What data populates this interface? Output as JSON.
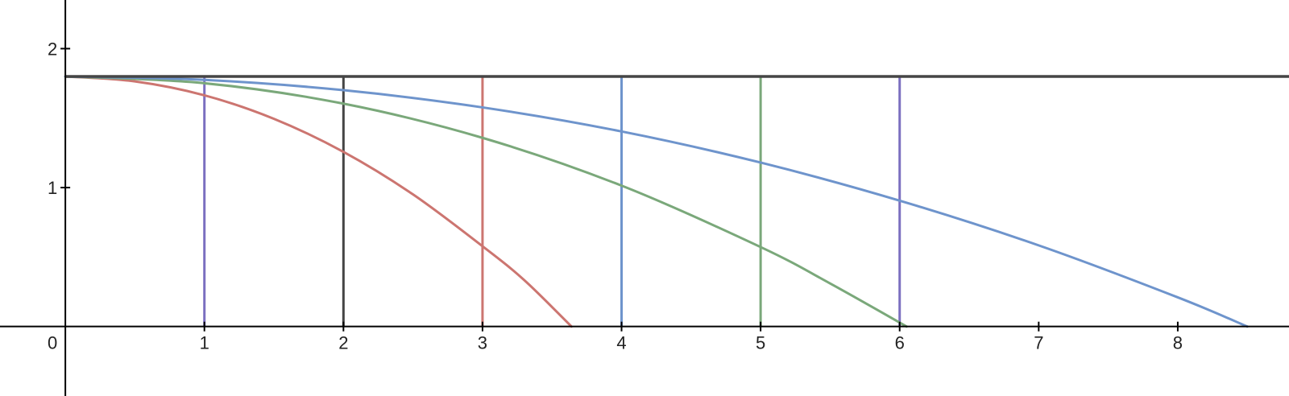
{
  "chart_data": {
    "type": "line",
    "xlim": [
      -0.47,
      8.8
    ],
    "ylim": [
      -0.5,
      2.35
    ],
    "grid": false,
    "origin_label": "0",
    "x_ticks": [
      1,
      2,
      3,
      4,
      5,
      6,
      7,
      8
    ],
    "y_ticks": [
      1,
      2
    ],
    "horizontal_lines": [
      {
        "y": 1.8,
        "x_start": 0,
        "color": "#454545"
      }
    ],
    "vertical_lines": [
      {
        "x": 1,
        "y_top": 1.8,
        "color": "#7b6fc0"
      },
      {
        "x": 2,
        "y_top": 1.8,
        "color": "#454545"
      },
      {
        "x": 3,
        "y_top": 1.8,
        "color": "#cc7570"
      },
      {
        "x": 4,
        "y_top": 1.8,
        "color": "#6e94cc"
      },
      {
        "x": 5,
        "y_top": 1.8,
        "color": "#7aa87a"
      },
      {
        "x": 6,
        "y_top": 1.8,
        "color": "#7b6fc0"
      }
    ],
    "series": [
      {
        "color": "#cc7570",
        "x": [
          0,
          0.5,
          1,
          1.5,
          2,
          2.5,
          3,
          3.3,
          3.64
        ],
        "y": [
          1.8,
          1.764,
          1.664,
          1.495,
          1.257,
          0.951,
          0.578,
          0.334,
          0.0
        ]
      },
      {
        "color": "#7aa87a",
        "x": [
          0,
          1,
          2,
          3,
          4,
          5,
          5.5,
          6.05
        ],
        "y": [
          1.8,
          1.751,
          1.604,
          1.358,
          1.014,
          0.572,
          0.31,
          0.0
        ]
      },
      {
        "color": "#6e94cc",
        "x": [
          0,
          1,
          2,
          3,
          4,
          5,
          6,
          7,
          8,
          8.5
        ],
        "y": [
          1.8,
          1.775,
          1.701,
          1.577,
          1.404,
          1.18,
          0.906,
          0.584,
          0.21,
          0.0
        ]
      }
    ]
  },
  "colors": {
    "red": "#cc7570",
    "green": "#7aa87a",
    "blue": "#6e94cc",
    "purple": "#7b6fc0",
    "dark": "#454545"
  }
}
